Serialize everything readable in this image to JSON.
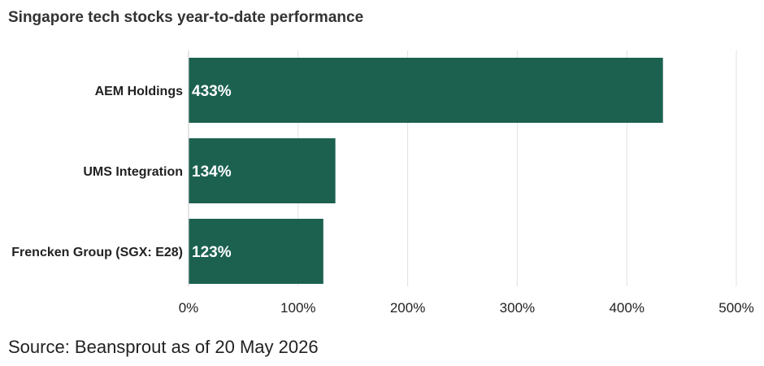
{
  "chart_data": {
    "type": "bar",
    "orientation": "horizontal",
    "title": "Singapore tech stocks year-to-date performance",
    "categories": [
      "AEM Holdings",
      "UMS Integration",
      "Frencken Group (SGX: E28)"
    ],
    "values": [
      433,
      134,
      123
    ],
    "data_labels": [
      "433%",
      "134%",
      "123%"
    ],
    "xlim": [
      0,
      500
    ],
    "x_ticks": [
      "0%",
      "100%",
      "200%",
      "300%",
      "400%",
      "500%"
    ],
    "xlabel": "",
    "ylabel": "",
    "grid": "vertical",
    "bar_color": "#1c6150",
    "label_color": "#ffffff"
  },
  "footer": {
    "source": "Source: Beansprout as of 20 May 2026"
  }
}
